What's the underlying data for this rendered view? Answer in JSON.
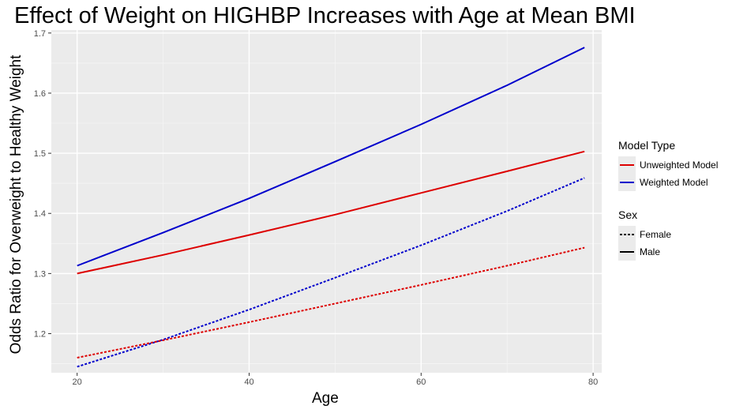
{
  "chart_data": {
    "type": "line",
    "title": "Effect of Weight on HIGHBP Increases with Age at Mean BMI",
    "xlabel": "Age",
    "ylabel": "Odds Ratio for Overweight to Healthy Weight",
    "xlim": [
      17,
      81
    ],
    "ylim": [
      1.135,
      1.705
    ],
    "x_ticks": [
      20,
      40,
      60,
      80
    ],
    "y_ticks": [
      1.2,
      1.3,
      1.4,
      1.5,
      1.6,
      1.7
    ],
    "x_tick_labels": [
      "20",
      "40",
      "60",
      "80"
    ],
    "y_tick_labels": [
      "1.2",
      "1.3",
      "1.4",
      "1.5",
      "1.6",
      "1.7"
    ],
    "grid": true,
    "legend_placement": "right",
    "legends": [
      {
        "title": "Model Type",
        "items": [
          {
            "label": "Unweighted Model",
            "color": "#dd0000",
            "dash": "solid"
          },
          {
            "label": "Weighted Model",
            "color": "#0000cc",
            "dash": "solid"
          }
        ]
      },
      {
        "title": "Sex",
        "items": [
          {
            "label": "Female",
            "color": "#000000",
            "dash": "dotted"
          },
          {
            "label": "Male",
            "color": "#000000",
            "dash": "solid"
          }
        ]
      }
    ],
    "x": [
      20,
      30,
      40,
      50,
      60,
      70,
      79
    ],
    "series": [
      {
        "model": "Weighted Model",
        "sex": "Male",
        "color": "#0000cc",
        "dash": "solid",
        "values": [
          1.313,
          1.368,
          1.425,
          1.486,
          1.548,
          1.613,
          1.676
        ]
      },
      {
        "model": "Unweighted Model",
        "sex": "Male",
        "color": "#dd0000",
        "dash": "solid",
        "values": [
          1.3,
          1.331,
          1.364,
          1.398,
          1.434,
          1.47,
          1.503
        ]
      },
      {
        "model": "Weighted Model",
        "sex": "Female",
        "color": "#0000cc",
        "dash": "dotted",
        "values": [
          1.145,
          1.19,
          1.24,
          1.293,
          1.347,
          1.404,
          1.459
        ]
      },
      {
        "model": "Unweighted Model",
        "sex": "Female",
        "color": "#dd0000",
        "dash": "dotted",
        "values": [
          1.16,
          1.189,
          1.219,
          1.25,
          1.281,
          1.313,
          1.343
        ]
      }
    ]
  }
}
